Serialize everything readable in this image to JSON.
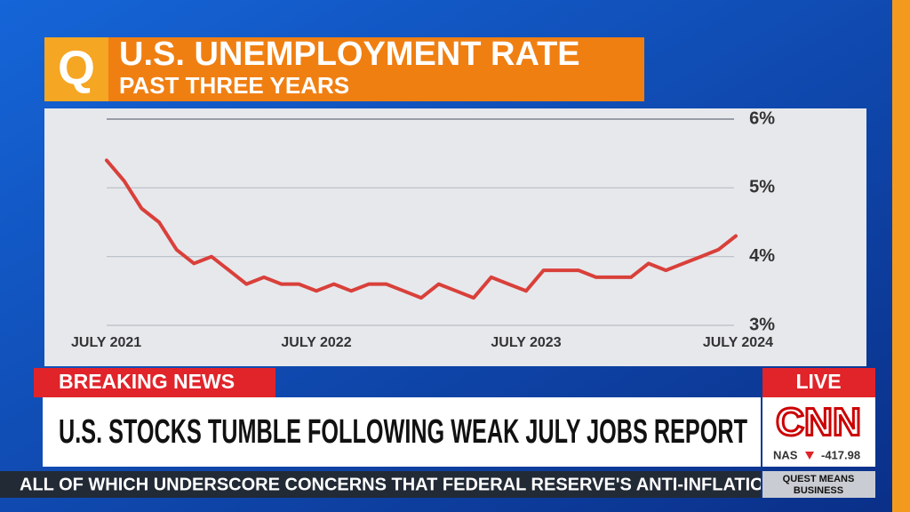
{
  "chart_data": {
    "type": "line",
    "title": "U.S. UNEMPLOYMENT RATE",
    "subtitle": "PAST THREE YEARS",
    "categories": [
      "JULY 2021",
      null,
      null,
      null,
      null,
      null,
      null,
      null,
      null,
      null,
      null,
      null,
      "JULY 2022",
      null,
      null,
      null,
      null,
      null,
      null,
      null,
      null,
      null,
      null,
      null,
      "JULY 2023",
      null,
      null,
      null,
      null,
      null,
      null,
      null,
      null,
      null,
      null,
      null,
      "JULY 2024"
    ],
    "values": [
      5.4,
      5.1,
      4.7,
      4.5,
      4.1,
      3.9,
      4.0,
      3.8,
      3.6,
      3.7,
      3.6,
      3.6,
      3.5,
      3.6,
      3.5,
      3.6,
      3.6,
      3.5,
      3.4,
      3.6,
      3.5,
      3.4,
      3.7,
      3.6,
      3.5,
      3.8,
      3.8,
      3.8,
      3.7,
      3.7,
      3.7,
      3.9,
      3.8,
      3.9,
      4.0,
      4.1,
      4.3
    ],
    "color": "#d9403a",
    "ylim": [
      3,
      6
    ],
    "yticks": [
      {
        "value": 3,
        "label": "3%"
      },
      {
        "value": 4,
        "label": "4%"
      },
      {
        "value": 5,
        "label": "5%"
      },
      {
        "value": 6,
        "label": "6%"
      }
    ],
    "grid": true
  },
  "show": {
    "logo": "Q",
    "breaking": "BREAKING NEWS",
    "live": "LIVE",
    "headline": "U.S. STOCKS TUMBLE FOLLOWING WEAK JULY JOBS REPORT",
    "network": "CNN",
    "market": {
      "index": "NAS",
      "change": -417.98
    },
    "ticker": "ALL OF WHICH UNDERSCORE CONCERNS THAT FEDERAL RESERVE'S ANTI-INFLATIO",
    "program": [
      "QUEST MEANS",
      "BUSINESS"
    ]
  }
}
